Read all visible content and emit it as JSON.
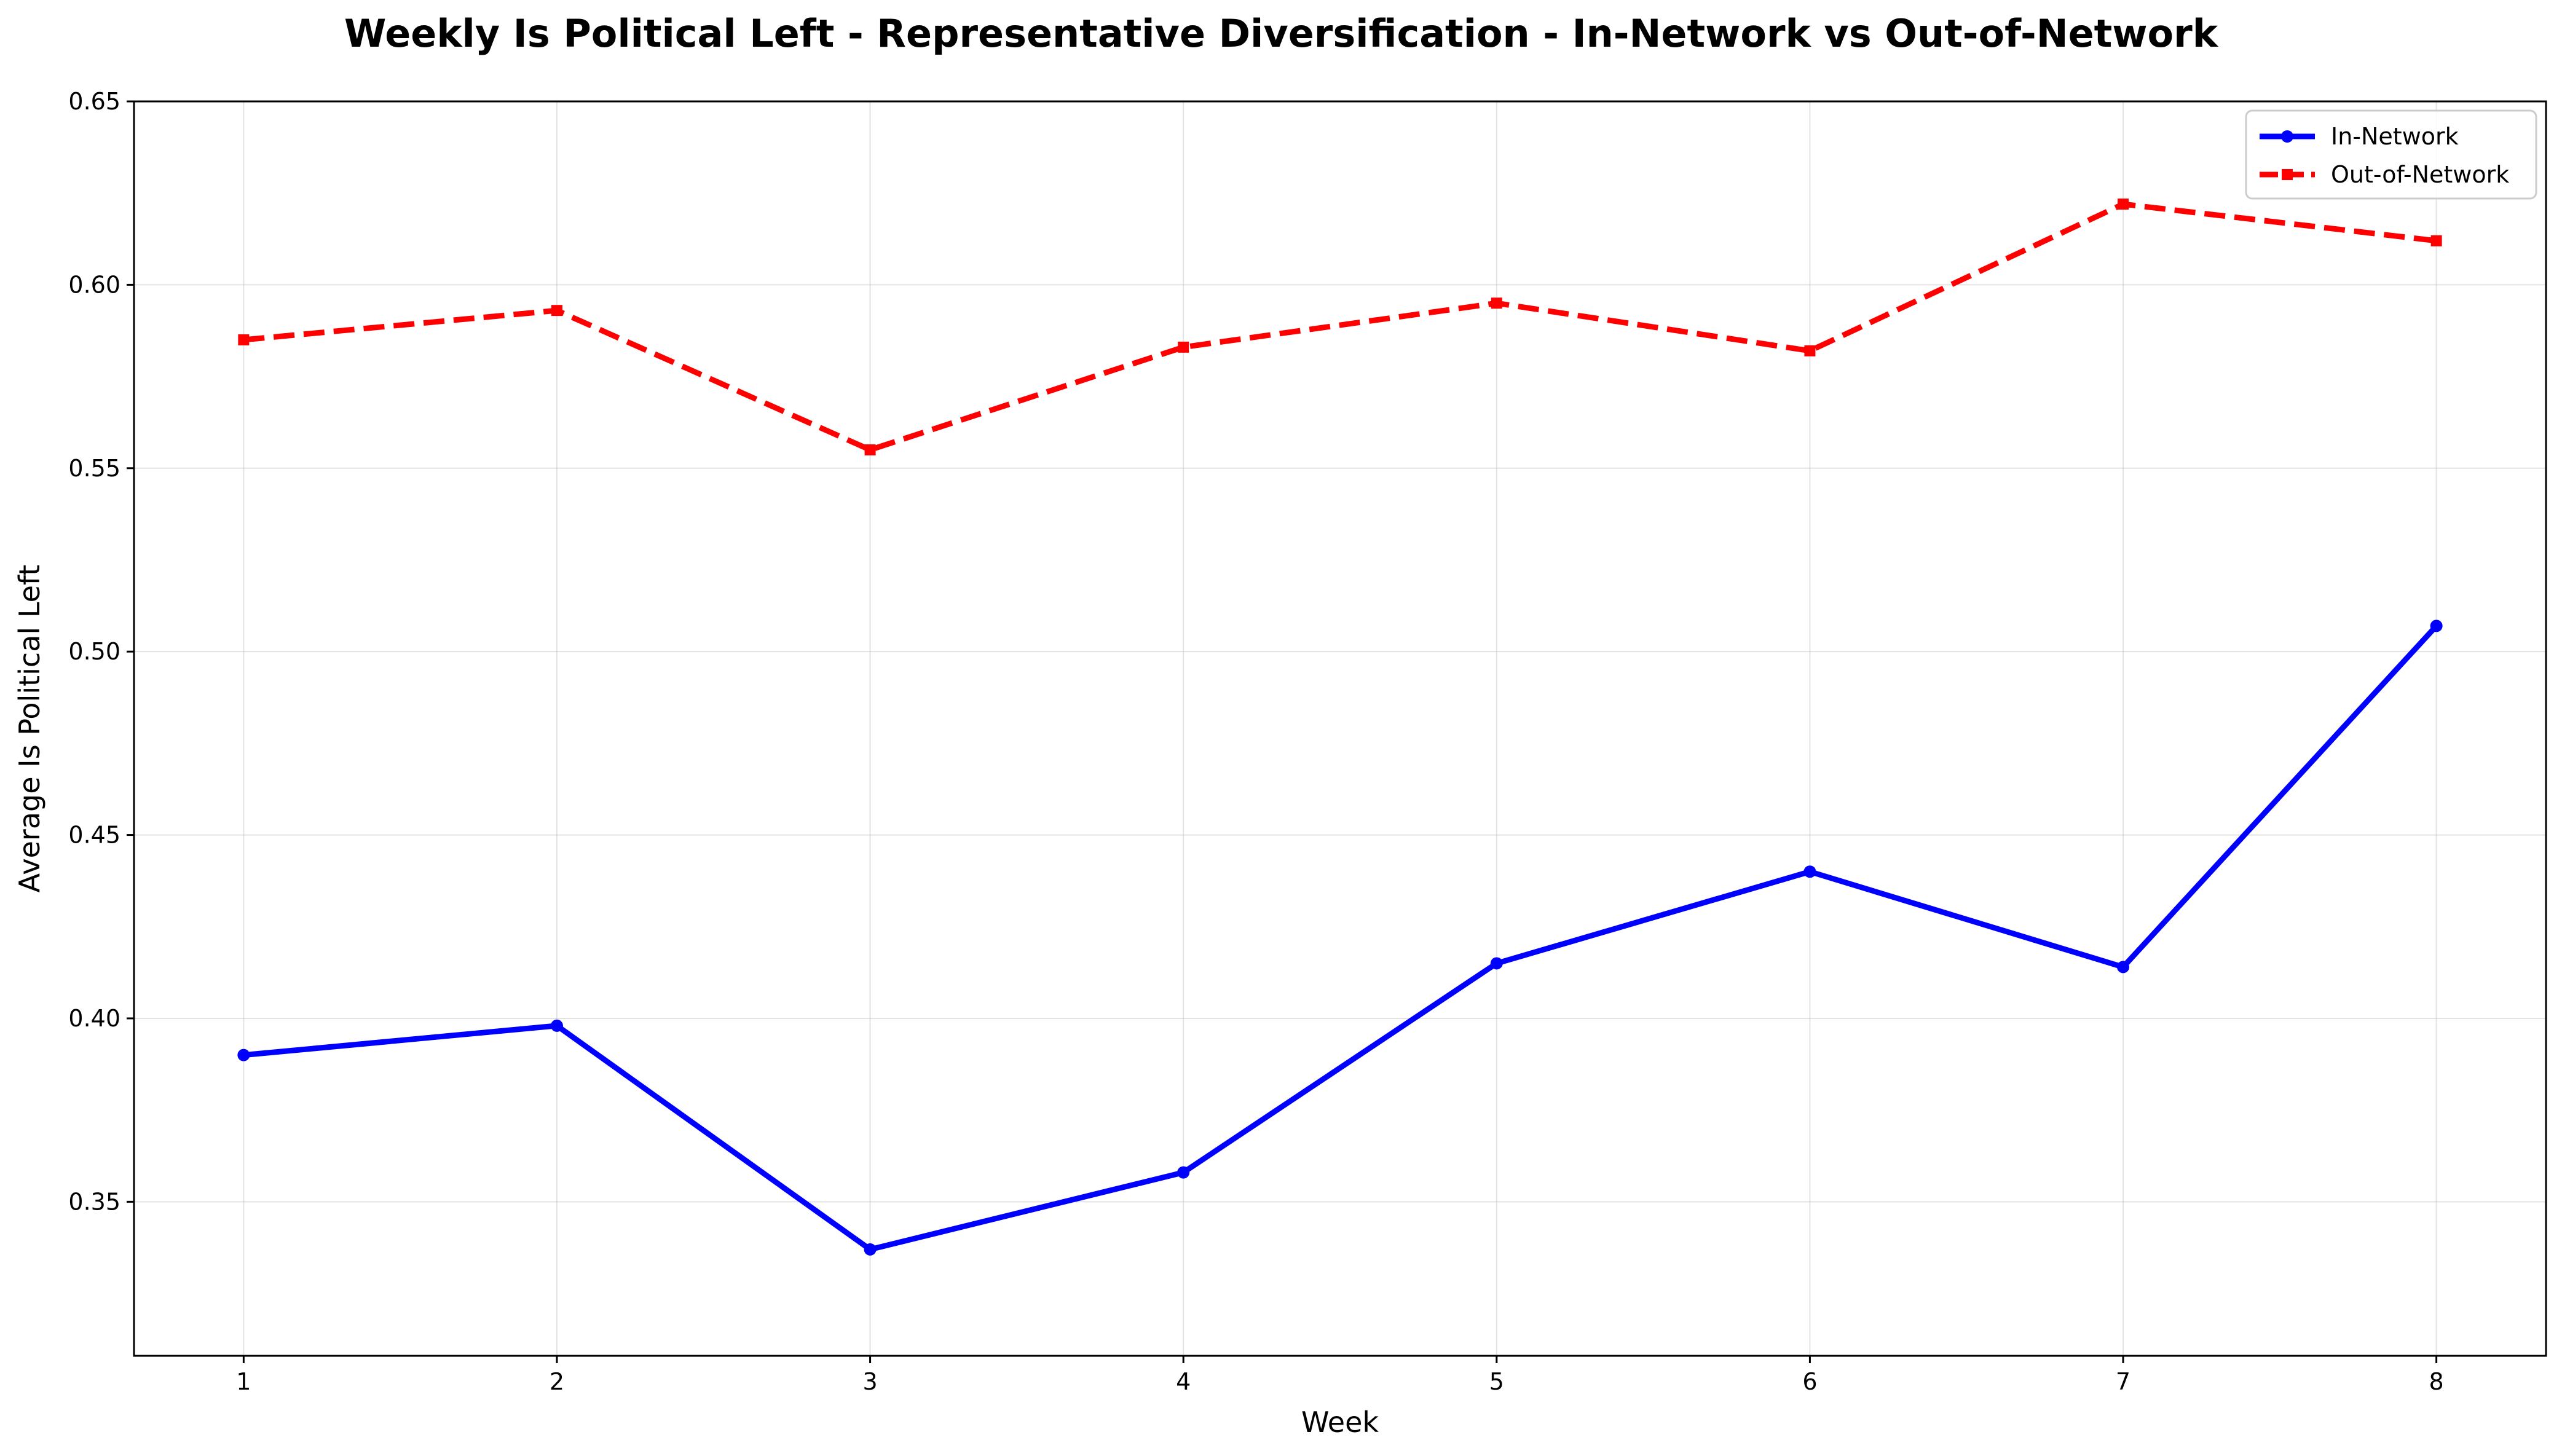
{
  "chart_data": {
    "type": "line",
    "title": "Weekly Is Political Left - Representative Diversification - In-Network vs Out-of-Network",
    "xlabel": "Week",
    "ylabel": "Average Is Political Left",
    "x": [
      1,
      2,
      3,
      4,
      5,
      6,
      7,
      8
    ],
    "xlim": [
      0.65,
      8.35
    ],
    "ylim": [
      0.308,
      0.65
    ],
    "yticks": [
      0.35,
      0.4,
      0.45,
      0.5,
      0.55,
      0.6,
      0.65
    ],
    "ytick_labels": [
      "0.35",
      "0.40",
      "0.45",
      "0.50",
      "0.55",
      "0.60",
      "0.65"
    ],
    "xtick_labels": [
      "1",
      "2",
      "3",
      "4",
      "5",
      "6",
      "7",
      "8"
    ],
    "grid": true,
    "legend_position": "top-right",
    "series": [
      {
        "name": "In-Network",
        "values": [
          0.39,
          0.398,
          0.337,
          0.358,
          0.415,
          0.44,
          0.414,
          0.507
        ],
        "color": "#0000ff",
        "style": "solid",
        "marker": "circle"
      },
      {
        "name": "Out-of-Network",
        "values": [
          0.585,
          0.593,
          0.555,
          0.583,
          0.595,
          0.582,
          0.622,
          0.612
        ],
        "color": "#ff0000",
        "style": "dashed",
        "marker": "square"
      }
    ]
  }
}
